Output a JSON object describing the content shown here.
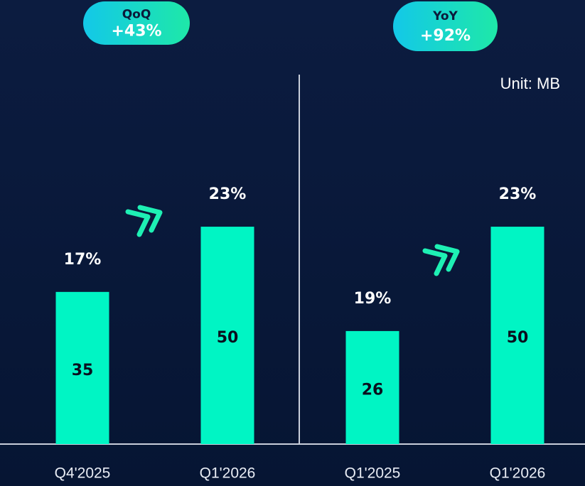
{
  "chart_data": [
    {
      "type": "bar",
      "badge": {
        "title": "QoQ",
        "value": "+43%"
      },
      "categories": [
        "Q4'2025",
        "Q1'2026"
      ],
      "values": [
        35,
        50
      ],
      "shares": [
        "17%",
        "23%"
      ],
      "color": "#00f5c4",
      "ylim": [
        0,
        80
      ]
    },
    {
      "type": "bar",
      "badge": {
        "title": "YoY",
        "value": "+92%"
      },
      "annotation": "Unit: MB",
      "categories": [
        "Q1'2025",
        "Q1'2026"
      ],
      "values": [
        26,
        50
      ],
      "shares": [
        "19%",
        "23%"
      ],
      "color": "#00f5c4",
      "ylim": [
        0,
        80
      ]
    }
  ]
}
